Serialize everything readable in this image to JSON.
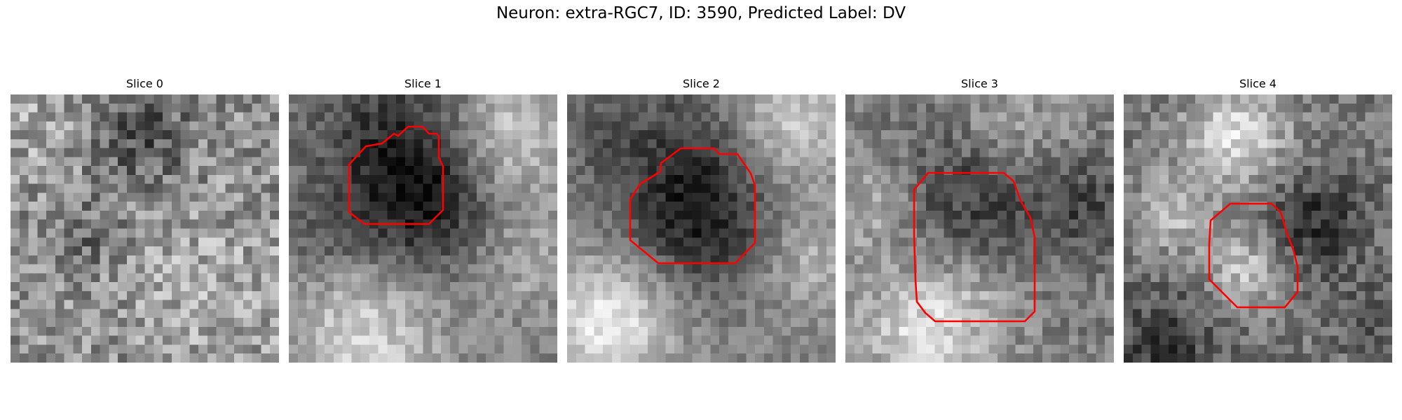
{
  "figure": {
    "title": "Neuron: extra-RGC7, ID: 3590, Predicted Label: DV"
  },
  "slices": [
    {
      "title": "Slice 0",
      "has_contour": false
    },
    {
      "title": "Slice 1",
      "has_contour": true
    },
    {
      "title": "Slice 2",
      "has_contour": true
    },
    {
      "title": "Slice 3",
      "has_contour": true
    },
    {
      "title": "Slice 4",
      "has_contour": true
    }
  ],
  "colors": {
    "contour": "#ff0000",
    "colormap": "gray"
  }
}
